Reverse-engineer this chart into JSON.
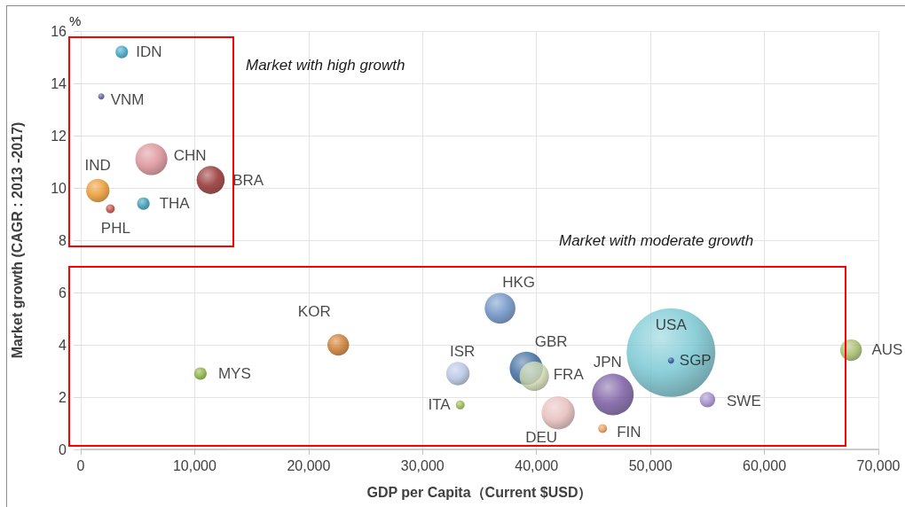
{
  "chart_data": {
    "type": "bubble",
    "xlabel": "GDP per Capita（Current $USD）",
    "ylabel": "Market growth (CAGR : 2013 -2017)",
    "annotations": [
      "%",
      "Market with high growth",
      "Market with moderate growth"
    ],
    "xlim": [
      0,
      70000
    ],
    "xticks": [
      0,
      {
        "value": 10000,
        "label": "10,000"
      },
      {
        "value": 20000,
        "label": "20,000"
      },
      {
        "value": 30000,
        "label": "30,000"
      },
      {
        "value": 40000,
        "label": "40,000"
      },
      {
        "value": 50000,
        "label": "50,000"
      },
      {
        "value": 60000,
        "label": "60,000"
      },
      {
        "value": 70000,
        "label": "70,000"
      }
    ],
    "ylim": [
      0,
      16
    ],
    "yticks": [
      0,
      2,
      4,
      6,
      8,
      10,
      12,
      14,
      16
    ],
    "grid": true,
    "marker": "circle",
    "series": [
      {
        "name": "IDN",
        "color": "#2e9cc0",
        "x": [
          3600
        ],
        "values": [
          15.2
        ],
        "sizes": [
          0.02
        ]
      },
      {
        "name": "VNM",
        "color": "#4a4a9a",
        "x": [
          1800
        ],
        "values": [
          13.5
        ],
        "sizes": [
          0.005
        ]
      },
      {
        "name": "CHN",
        "color": "#d88890",
        "x": [
          6200
        ],
        "values": [
          11.1
        ],
        "sizes": [
          0.13
        ]
      },
      {
        "name": "IND",
        "color": "#e8901e",
        "x": [
          1500
        ],
        "values": [
          9.9
        ],
        "sizes": [
          0.07
        ]
      },
      {
        "name": "BRA",
        "color": "#8c2020",
        "x": [
          11400
        ],
        "values": [
          10.3
        ],
        "sizes": [
          0.1
        ]
      },
      {
        "name": "THA",
        "color": "#2a90b0",
        "x": [
          5500
        ],
        "values": [
          9.4
        ],
        "sizes": [
          0.02
        ]
      },
      {
        "name": "PHL",
        "color": "#b83a30",
        "x": [
          2600
        ],
        "values": [
          9.2
        ],
        "sizes": [
          0.01
        ]
      },
      {
        "name": "MYS",
        "color": "#80aa30",
        "x": [
          10500
        ],
        "values": [
          2.9
        ],
        "sizes": [
          0.02
        ]
      },
      {
        "name": "KOR",
        "color": "#c8701e",
        "x": [
          22600
        ],
        "values": [
          4.0
        ],
        "sizes": [
          0.06
        ]
      },
      {
        "name": "ISR",
        "color": "#b0c0e0",
        "x": [
          33100
        ],
        "values": [
          2.9
        ],
        "sizes": [
          0.07
        ]
      },
      {
        "name": "ITA",
        "color": "#90b040",
        "x": [
          33300
        ],
        "values": [
          1.7
        ],
        "sizes": [
          0.01
        ]
      },
      {
        "name": "HKG",
        "color": "#6088c0",
        "x": [
          36800
        ],
        "values": [
          5.4
        ],
        "sizes": [
          0.12
        ]
      },
      {
        "name": "GBR",
        "color": "#2f6098",
        "x": [
          39100
        ],
        "values": [
          3.1
        ],
        "sizes": [
          0.14
        ]
      },
      {
        "name": "FRA",
        "color": "#d0dcb0",
        "x": [
          39800
        ],
        "values": [
          2.8
        ],
        "sizes": [
          0.11
        ]
      },
      {
        "name": "DEU",
        "color": "#e6b8b8",
        "x": [
          41900
        ],
        "values": [
          1.4
        ],
        "sizes": [
          0.14
        ]
      },
      {
        "name": "JPN",
        "color": "#70509c",
        "x": [
          46700
        ],
        "values": [
          2.1
        ],
        "sizes": [
          0.22
        ]
      },
      {
        "name": "FIN",
        "color": "#e8924a",
        "x": [
          45800
        ],
        "values": [
          0.8
        ],
        "sizes": [
          0.01
        ]
      },
      {
        "name": "USA",
        "color": "#70c4d0",
        "x": [
          51800
        ],
        "values": [
          3.7
        ],
        "sizes": [
          1
        ]
      },
      {
        "name": "SGP",
        "color": "#3050a0",
        "x": [
          51800
        ],
        "values": [
          3.4
        ],
        "sizes": [
          0.005
        ]
      },
      {
        "name": "SWE",
        "color": "#9a84c8",
        "x": [
          55000
        ],
        "values": [
          1.9
        ],
        "sizes": [
          0.03
        ]
      },
      {
        "name": "AUS",
        "color": "#a0b860",
        "x": [
          67600
        ],
        "values": [
          3.8
        ],
        "sizes": [
          0.06
        ]
      }
    ]
  }
}
